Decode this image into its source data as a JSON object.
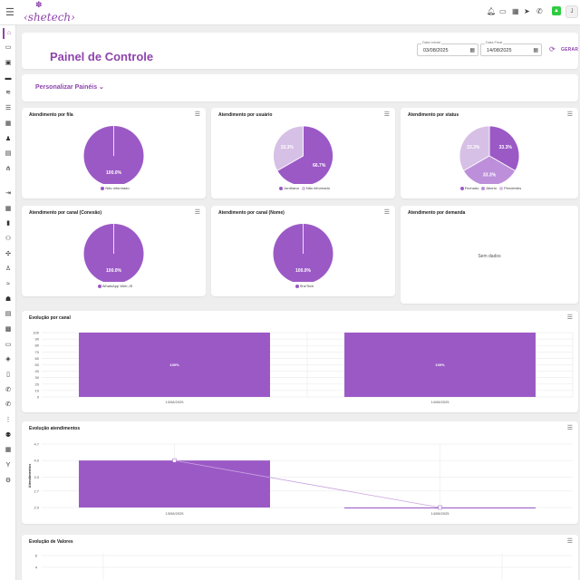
{
  "header": {
    "logo": "‹shetech›"
  },
  "page": {
    "title": "Painel de Controle"
  },
  "filters": {
    "start_label": "Data Inicial",
    "start_value": "03/08/2025",
    "end_label": "Data Final",
    "end_value": "14/08/2025",
    "generate_label": "GERAR",
    "customize_label": "Personalizar Painéis"
  },
  "colors": {
    "primary": "#8e44ad",
    "pie_main": "#9b59c6",
    "pie_light": "#d7c0e6",
    "pie_mid": "#bd8fda"
  },
  "pies": [
    {
      "title": "Atendimento por fila",
      "slices": [
        {
          "label": "Não informado",
          "value": 100.0,
          "text": "100.0%",
          "color": "#9b59c6"
        }
      ]
    },
    {
      "title": "Atendimento por usuário",
      "slices": [
        {
          "label": "Jordhana",
          "value": 66.7,
          "text": "66.7%",
          "color": "#9b59c6"
        },
        {
          "label": "Não informado",
          "value": 33.3,
          "text": "33.3%",
          "color": "#d7c0e6"
        }
      ]
    },
    {
      "title": "Atendimento por status",
      "slices": [
        {
          "label": "Fechado",
          "value": 33.3,
          "text": "33.3%",
          "color": "#9b59c6"
        },
        {
          "label": "Aberto",
          "value": 33.3,
          "text": "33.3%",
          "color": "#bd8fda"
        },
        {
          "label": "Pendentes",
          "value": 33.3,
          "text": "33.3%",
          "color": "#d7c0e6"
        }
      ]
    },
    {
      "title": "Atendimento por canal (Conexão)",
      "slices": [
        {
          "label": "WhatsApp Web.JS",
          "value": 100.0,
          "text": "100.0%",
          "color": "#9b59c6"
        }
      ]
    },
    {
      "title": "Atendimento por canal (Nome)",
      "slices": [
        {
          "label": "SheTech",
          "value": 100.0,
          "text": "100.0%",
          "color": "#9b59c6"
        }
      ]
    }
  ],
  "demand": {
    "title": "Atendimento por demanda",
    "empty_text": "Sem dados"
  },
  "chart_data": [
    {
      "type": "bar",
      "title": "Evolução por canal",
      "categories": [
        "13/08/2025",
        "14/08/2025"
      ],
      "values": [
        100,
        100
      ],
      "bar_labels": [
        "100%",
        "100%"
      ],
      "ylim": [
        0,
        100
      ],
      "yticks": [
        "0",
        "10",
        "20",
        "30",
        "40",
        "50",
        "60",
        "70",
        "80",
        "90",
        "100"
      ],
      "grid": true
    },
    {
      "type": "bar+line",
      "title": "Evolução atendimentos",
      "ylabel": "Atendimentos",
      "categories": [
        "13/08/2025",
        "14/08/2025"
      ],
      "bar_values": [
        4.0,
        2.0
      ],
      "line_values": [
        4.0,
        2.0
      ],
      "ylim": [
        2,
        4.7
      ],
      "yticks": [
        "2.0",
        "2.7",
        "3.3",
        "4.0",
        "4.7"
      ],
      "grid": true
    },
    {
      "type": "line",
      "title": "Evolução de Valores",
      "yticks": [
        "6",
        "4"
      ],
      "grid": true
    }
  ]
}
